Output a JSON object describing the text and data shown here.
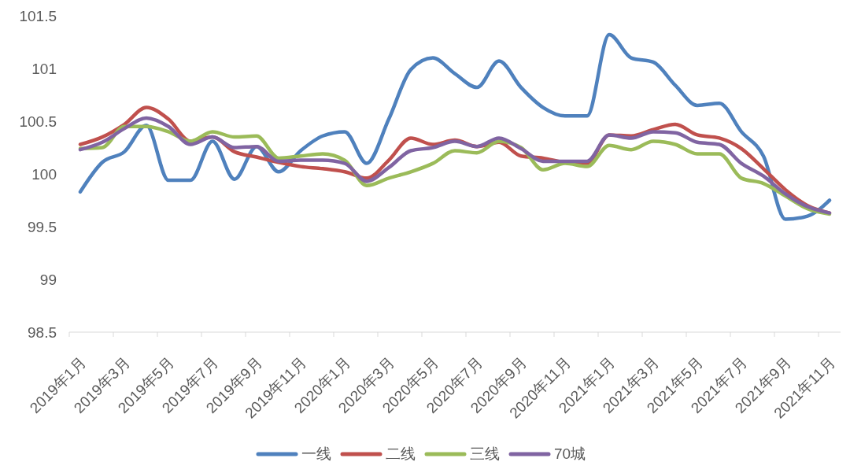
{
  "chart_data": {
    "type": "line",
    "categories": [
      "2019年1月",
      null,
      "2019年3月",
      null,
      "2019年5月",
      null,
      "2019年7月",
      null,
      "2019年9月",
      null,
      "2019年11月",
      null,
      "2020年1月",
      null,
      "2020年3月",
      null,
      "2020年5月",
      null,
      "2020年7月",
      null,
      "2020年9月",
      null,
      "2020年11月",
      null,
      "2021年1月",
      null,
      "2021年3月",
      null,
      "2021年5月",
      null,
      "2021年7月",
      null,
      "2021年9月",
      null,
      "2021年11月"
    ],
    "series": [
      {
        "name": "一线",
        "color": "#4f81bd",
        "values": [
          99.83,
          100.11,
          100.21,
          100.46,
          99.94,
          99.94,
          100.31,
          99.95,
          100.26,
          100.02,
          100.22,
          100.36,
          100.4,
          100.1,
          100.52,
          100.99,
          101.1,
          100.95,
          100.82,
          101.07,
          100.82,
          100.63,
          100.55,
          100.55,
          101.32,
          101.1,
          101.06,
          100.84,
          100.65,
          100.67,
          100.4,
          100.17,
          99.57,
          99.6,
          99.75
        ]
      },
      {
        "name": "二线",
        "color": "#c0504d",
        "values": [
          100.28,
          100.35,
          100.47,
          100.63,
          100.52,
          100.31,
          100.35,
          100.21,
          100.16,
          100.11,
          100.07,
          100.05,
          100.02,
          99.96,
          100.13,
          100.34,
          100.28,
          100.32,
          100.26,
          100.3,
          100.17,
          100.15,
          100.11,
          100.1,
          100.37,
          100.36,
          100.42,
          100.47,
          100.37,
          100.34,
          100.24,
          100.05,
          99.85,
          99.7,
          99.63
        ]
      },
      {
        "name": "三线",
        "color": "#9bbb59",
        "values": [
          100.24,
          100.25,
          100.45,
          100.45,
          100.4,
          100.31,
          100.4,
          100.35,
          100.36,
          100.15,
          100.17,
          100.19,
          100.13,
          99.89,
          99.96,
          100.02,
          100.1,
          100.22,
          100.2,
          100.31,
          100.25,
          100.04,
          100.1,
          100.07,
          100.27,
          100.23,
          100.31,
          100.28,
          100.19,
          100.19,
          99.96,
          99.91,
          99.79,
          99.67,
          99.62
        ]
      },
      {
        "name": "70城",
        "color": "#8064a2",
        "values": [
          100.23,
          100.3,
          100.43,
          100.53,
          100.45,
          100.28,
          100.35,
          100.25,
          100.26,
          100.12,
          100.13,
          100.13,
          100.1,
          99.93,
          100.06,
          100.22,
          100.25,
          100.31,
          100.26,
          100.34,
          100.24,
          100.12,
          100.12,
          100.12,
          100.37,
          100.34,
          100.4,
          100.39,
          100.3,
          100.28,
          100.1,
          99.98,
          99.81,
          99.69,
          99.63
        ]
      }
    ],
    "ylim": [
      98.5,
      101.5
    ],
    "yticks": [
      98.5,
      99,
      99.5,
      100,
      100.5,
      101,
      101.5
    ],
    "legend": "bottom",
    "marker": "none",
    "line_style": "solid"
  }
}
